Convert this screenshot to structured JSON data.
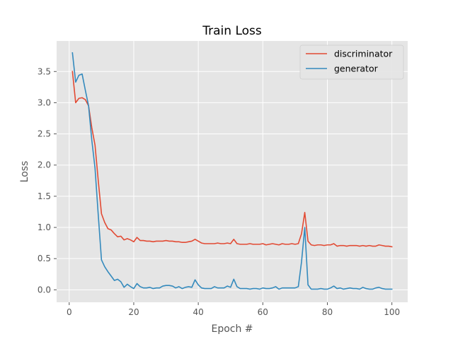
{
  "chart_data": {
    "type": "line",
    "title": "Train Loss",
    "xlabel": "Epoch #",
    "ylabel": "Loss",
    "xlim": [
      -3.9,
      104.9
    ],
    "ylim": [
      -0.2,
      3.99
    ],
    "xticks": [
      0,
      20,
      40,
      60,
      80,
      100
    ],
    "yticks": [
      0.0,
      0.5,
      1.0,
      1.5,
      2.0,
      2.5,
      3.0,
      3.5
    ],
    "xtick_labels": [
      "0",
      "20",
      "40",
      "60",
      "80",
      "100"
    ],
    "ytick_labels": [
      "0.0",
      "0.5",
      "1.0",
      "1.5",
      "2.0",
      "2.5",
      "3.0",
      "3.5"
    ],
    "grid": true,
    "legend_position": "top-right",
    "x": [
      1,
      2,
      3,
      4,
      5,
      6,
      7,
      8,
      9,
      10,
      11,
      12,
      13,
      14,
      15,
      16,
      17,
      18,
      19,
      20,
      21,
      22,
      23,
      24,
      25,
      26,
      27,
      28,
      29,
      30,
      31,
      32,
      33,
      34,
      35,
      36,
      37,
      38,
      39,
      40,
      41,
      42,
      43,
      44,
      45,
      46,
      47,
      48,
      49,
      50,
      51,
      52,
      53,
      54,
      55,
      56,
      57,
      58,
      59,
      60,
      61,
      62,
      63,
      64,
      65,
      66,
      67,
      68,
      69,
      70,
      71,
      72,
      73,
      74,
      75,
      76,
      77,
      78,
      79,
      80,
      81,
      82,
      83,
      84,
      85,
      86,
      87,
      88,
      89,
      90,
      91,
      92,
      93,
      94,
      95,
      96,
      97,
      98,
      99,
      100
    ],
    "series": [
      {
        "name": "discriminator",
        "color": "#E24A33",
        "values": [
          3.5,
          3.0,
          3.07,
          3.08,
          3.05,
          2.95,
          2.6,
          2.32,
          1.75,
          1.22,
          1.08,
          0.98,
          0.96,
          0.9,
          0.85,
          0.86,
          0.8,
          0.82,
          0.8,
          0.77,
          0.84,
          0.79,
          0.79,
          0.78,
          0.78,
          0.77,
          0.78,
          0.78,
          0.78,
          0.79,
          0.78,
          0.78,
          0.77,
          0.77,
          0.76,
          0.76,
          0.77,
          0.78,
          0.81,
          0.78,
          0.75,
          0.74,
          0.74,
          0.74,
          0.74,
          0.75,
          0.74,
          0.74,
          0.75,
          0.74,
          0.81,
          0.74,
          0.73,
          0.73,
          0.73,
          0.74,
          0.73,
          0.73,
          0.73,
          0.74,
          0.72,
          0.73,
          0.74,
          0.73,
          0.72,
          0.74,
          0.73,
          0.73,
          0.74,
          0.73,
          0.74,
          0.9,
          1.24,
          0.78,
          0.72,
          0.71,
          0.72,
          0.72,
          0.71,
          0.72,
          0.72,
          0.74,
          0.7,
          0.71,
          0.71,
          0.7,
          0.71,
          0.71,
          0.71,
          0.7,
          0.71,
          0.7,
          0.71,
          0.7,
          0.7,
          0.72,
          0.71,
          0.7,
          0.7,
          0.69
        ]
      },
      {
        "name": "generator",
        "color": "#348ABD",
        "values": [
          3.8,
          3.33,
          3.44,
          3.46,
          3.2,
          2.95,
          2.4,
          1.95,
          1.2,
          0.48,
          0.37,
          0.29,
          0.22,
          0.15,
          0.17,
          0.13,
          0.04,
          0.09,
          0.05,
          0.02,
          0.1,
          0.05,
          0.03,
          0.03,
          0.04,
          0.02,
          0.03,
          0.03,
          0.06,
          0.07,
          0.07,
          0.06,
          0.03,
          0.05,
          0.02,
          0.04,
          0.05,
          0.04,
          0.16,
          0.08,
          0.03,
          0.02,
          0.02,
          0.02,
          0.05,
          0.03,
          0.03,
          0.03,
          0.06,
          0.04,
          0.17,
          0.05,
          0.02,
          0.02,
          0.02,
          0.01,
          0.02,
          0.02,
          0.01,
          0.03,
          0.02,
          0.02,
          0.03,
          0.05,
          0.01,
          0.03,
          0.03,
          0.03,
          0.03,
          0.03,
          0.05,
          0.45,
          1.0,
          0.08,
          0.01,
          0.01,
          0.01,
          0.02,
          0.01,
          0.01,
          0.03,
          0.06,
          0.02,
          0.03,
          0.01,
          0.02,
          0.03,
          0.02,
          0.02,
          0.01,
          0.04,
          0.02,
          0.01,
          0.01,
          0.03,
          0.04,
          0.02,
          0.01,
          0.01,
          0.01
        ]
      }
    ]
  }
}
